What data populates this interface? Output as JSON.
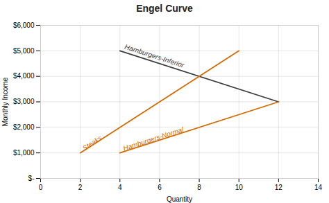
{
  "chart_data": {
    "type": "line",
    "title": "Engel Curve",
    "xlabel": "Quantity",
    "ylabel": "Monthly Income",
    "xlim": [
      0,
      14
    ],
    "ylim": [
      0,
      6000
    ],
    "xticks": [
      0,
      2,
      4,
      6,
      8,
      10,
      12,
      14
    ],
    "yticks": [
      {
        "value": 0,
        "label": "$-"
      },
      {
        "value": 1000,
        "label": "$1,000"
      },
      {
        "value": 2000,
        "label": "$2,000"
      },
      {
        "value": 3000,
        "label": "$3,000"
      },
      {
        "value": 4000,
        "label": "$4,000"
      },
      {
        "value": 5000,
        "label": "$5,000"
      },
      {
        "value": 6000,
        "label": "$6,000"
      }
    ],
    "grid": true,
    "series": [
      {
        "name": "Hamburgers-Inferior",
        "color": "#3c3c3c",
        "x": [
          4,
          12
        ],
        "values": [
          5000,
          3000
        ]
      },
      {
        "name": "Steaks",
        "color": "#d46a00",
        "x": [
          2,
          10
        ],
        "values": [
          1000,
          5000
        ]
      },
      {
        "name": "Hamburgers-Normal",
        "color": "#d46a00",
        "x": [
          4,
          12
        ],
        "values": [
          1000,
          3000
        ]
      }
    ]
  }
}
